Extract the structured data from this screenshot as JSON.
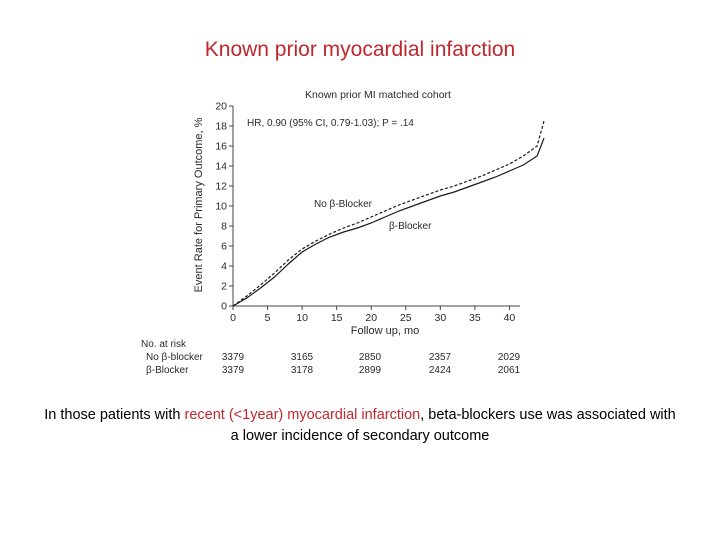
{
  "slide": {
    "title": "Known prior myocardial infarction",
    "caption": {
      "part1": "In those patients with ",
      "highlight1": "recent (<1year)",
      "part2": " ",
      "highlight2": "myocardial infarction",
      "part3": ", beta-blockers use was associated with a lower incidence of secondary outcome"
    }
  },
  "chart_data": {
    "type": "line",
    "title": "Known prior MI matched cohort",
    "annotation": "HR, 0.90 (95% CI, 0.79-1.03); P = .14",
    "xlabel": "Follow up, mo",
    "ylabel": "Event Rate for Primary Outcome, %",
    "xlim": [
      0,
      45
    ],
    "ylim": [
      0,
      20
    ],
    "xticks": [
      0,
      5,
      10,
      15,
      20,
      25,
      30,
      35,
      40
    ],
    "yticks": [
      0,
      2,
      4,
      6,
      8,
      10,
      12,
      14,
      16,
      18,
      20
    ],
    "grid": false,
    "series": [
      {
        "name": "No β-Blocker",
        "style": "dashed",
        "x": [
          0,
          2,
          4,
          6,
          8,
          10,
          12,
          14,
          16,
          18,
          20,
          22,
          24,
          26,
          28,
          30,
          32,
          34,
          36,
          38,
          40,
          42,
          44,
          45
        ],
        "y": [
          0,
          1.0,
          2.1,
          3.3,
          4.6,
          5.7,
          6.5,
          7.2,
          7.8,
          8.3,
          8.9,
          9.5,
          10.1,
          10.6,
          11.1,
          11.6,
          12.0,
          12.5,
          13.0,
          13.6,
          14.2,
          15.0,
          16.0,
          18.5
        ]
      },
      {
        "name": "β-Blocker",
        "style": "solid",
        "x": [
          0,
          2,
          4,
          6,
          8,
          10,
          12,
          14,
          16,
          18,
          20,
          22,
          24,
          26,
          28,
          30,
          32,
          34,
          36,
          38,
          40,
          42,
          44,
          45
        ],
        "y": [
          0,
          0.8,
          1.8,
          2.9,
          4.2,
          5.4,
          6.2,
          6.9,
          7.4,
          7.8,
          8.3,
          8.9,
          9.5,
          10.0,
          10.5,
          11.0,
          11.4,
          11.9,
          12.4,
          12.9,
          13.5,
          14.1,
          15.0,
          16.8
        ]
      }
    ],
    "risk_table": {
      "label": "No. at risk",
      "rows": [
        {
          "name": "No β-blocker",
          "values": [
            "3379",
            "3165",
            "2850",
            "2357",
            "2029"
          ]
        },
        {
          "name": "β-Blocker",
          "values": [
            "3379",
            "3178",
            "2899",
            "2424",
            "2061"
          ]
        }
      ]
    }
  }
}
